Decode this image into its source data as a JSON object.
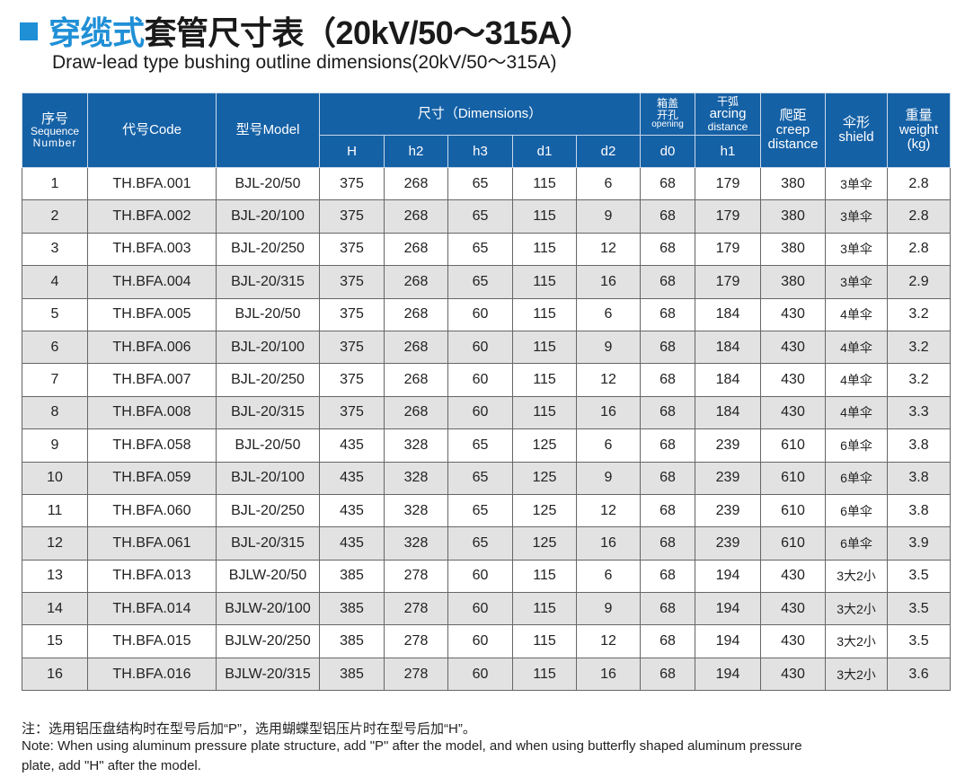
{
  "title": {
    "highlight": "穿缆式",
    "rest": "套管尺寸表（20kV/50～315A）"
  },
  "subtitle": "Draw-lead type bushing outline dimensions(20kV/50～315A)",
  "colors": {
    "header_bg": "#1561a6",
    "accent": "#1f8fd6",
    "alt_row": "#e2e2e2"
  },
  "header": {
    "seq_cn": "序号",
    "seq_en1": "Sequence",
    "seq_en2": "Number",
    "code": "代号Code",
    "model": "型号Model",
    "dimensions": "尺寸（Dimensions）",
    "opening_cn1": "箱盖",
    "opening_cn2": "开孔",
    "opening_en": "opening",
    "arcing_cn": "干弧",
    "arcing_en1": "arcing",
    "arcing_en2": "distance",
    "creep_cn": "爬距",
    "creep_en1": "creep",
    "creep_en2": "distance",
    "shield_cn": "伞形",
    "shield_en": "shield",
    "weight_cn": "重量",
    "weight_en": "weight",
    "weight_unit": "(kg)",
    "sub": [
      "H",
      "h2",
      "h3",
      "d1",
      "d2",
      "d0",
      "h1"
    ]
  },
  "rows": [
    [
      "1",
      "TH.BFA.001",
      "BJL-20/50",
      "375",
      "268",
      "65",
      "115",
      "6",
      "68",
      "179",
      "380",
      "3单伞",
      "2.8"
    ],
    [
      "2",
      "TH.BFA.002",
      "BJL-20/100",
      "375",
      "268",
      "65",
      "115",
      "9",
      "68",
      "179",
      "380",
      "3单伞",
      "2.8"
    ],
    [
      "3",
      "TH.BFA.003",
      "BJL-20/250",
      "375",
      "268",
      "65",
      "115",
      "12",
      "68",
      "179",
      "380",
      "3单伞",
      "2.8"
    ],
    [
      "4",
      "TH.BFA.004",
      "BJL-20/315",
      "375",
      "268",
      "65",
      "115",
      "16",
      "68",
      "179",
      "380",
      "3单伞",
      "2.9"
    ],
    [
      "5",
      "TH.BFA.005",
      "BJL-20/50",
      "375",
      "268",
      "60",
      "115",
      "6",
      "68",
      "184",
      "430",
      "4单伞",
      "3.2"
    ],
    [
      "6",
      "TH.BFA.006",
      "BJL-20/100",
      "375",
      "268",
      "60",
      "115",
      "9",
      "68",
      "184",
      "430",
      "4单伞",
      "3.2"
    ],
    [
      "7",
      "TH.BFA.007",
      "BJL-20/250",
      "375",
      "268",
      "60",
      "115",
      "12",
      "68",
      "184",
      "430",
      "4单伞",
      "3.2"
    ],
    [
      "8",
      "TH.BFA.008",
      "BJL-20/315",
      "375",
      "268",
      "60",
      "115",
      "16",
      "68",
      "184",
      "430",
      "4单伞",
      "3.3"
    ],
    [
      "9",
      "TH.BFA.058",
      "BJL-20/50",
      "435",
      "328",
      "65",
      "125",
      "6",
      "68",
      "239",
      "610",
      "6单伞",
      "3.8"
    ],
    [
      "10",
      "TH.BFA.059",
      "BJL-20/100",
      "435",
      "328",
      "65",
      "125",
      "9",
      "68",
      "239",
      "610",
      "6单伞",
      "3.8"
    ],
    [
      "11",
      "TH.BFA.060",
      "BJL-20/250",
      "435",
      "328",
      "65",
      "125",
      "12",
      "68",
      "239",
      "610",
      "6单伞",
      "3.8"
    ],
    [
      "12",
      "TH.BFA.061",
      "BJL-20/315",
      "435",
      "328",
      "65",
      "125",
      "16",
      "68",
      "239",
      "610",
      "6单伞",
      "3.9"
    ],
    [
      "13",
      "TH.BFA.013",
      "BJLW-20/50",
      "385",
      "278",
      "60",
      "115",
      "6",
      "68",
      "194",
      "430",
      "3大2小",
      "3.5"
    ],
    [
      "14",
      "TH.BFA.014",
      "BJLW-20/100",
      "385",
      "278",
      "60",
      "115",
      "9",
      "68",
      "194",
      "430",
      "3大2小",
      "3.5"
    ],
    [
      "15",
      "TH.BFA.015",
      "BJLW-20/250",
      "385",
      "278",
      "60",
      "115",
      "12",
      "68",
      "194",
      "430",
      "3大2小",
      "3.5"
    ],
    [
      "16",
      "TH.BFA.016",
      "BJLW-20/315",
      "385",
      "278",
      "60",
      "115",
      "16",
      "68",
      "194",
      "430",
      "3大2小",
      "3.6"
    ]
  ],
  "notes": {
    "cn": "注：选用铝压盘结构时在型号后加“P”，选用蝴蝶型铝压片时在型号后加“H”。",
    "en1": "Note: When using aluminum pressure plate structure, add \"P\" after the model, and when using butterfly shaped aluminum pressure",
    "en2": "plate, add \"H\" after the model."
  }
}
